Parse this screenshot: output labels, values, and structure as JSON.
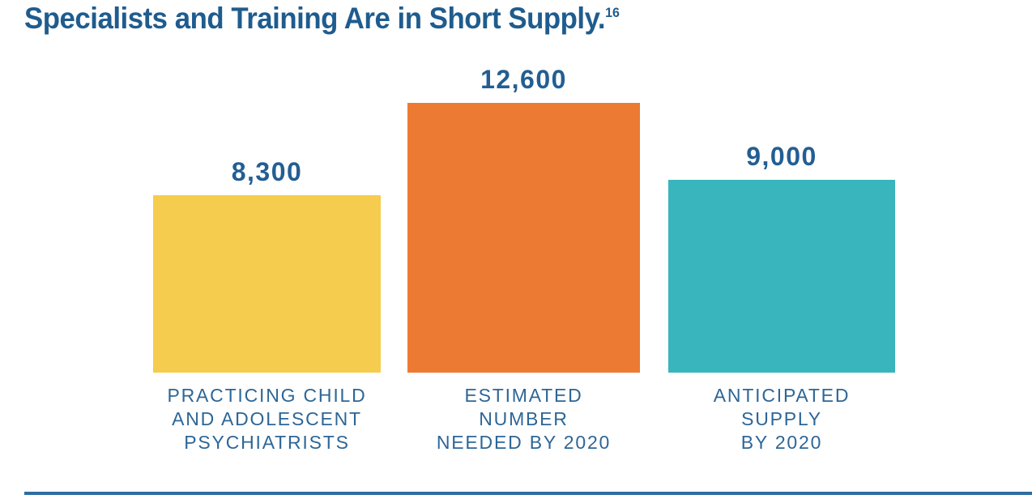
{
  "title": {
    "text": "Specialists and Training Are in Short Supply.",
    "superscript": "16"
  },
  "chart_data": {
    "type": "bar",
    "title": "Specialists and Training Are in Short Supply.",
    "title_footnote_marker": "16",
    "categories": [
      "PRACTICING CHILD AND ADOLESCENT PSYCHIATRISTS",
      "ESTIMATED NUMBER NEEDED BY 2020",
      "ANTICIPATED SUPPLY BY 2020"
    ],
    "values": [
      8300,
      12600,
      9000
    ],
    "value_labels": [
      "8,300",
      "12,600",
      "9,000"
    ],
    "bars": [
      {
        "value": 8300,
        "value_label": "8,300",
        "color": "#F5CC4D",
        "label_lines": [
          "PRACTICING CHILD",
          "AND ADOLESCENT",
          "PSYCHIATRISTS"
        ]
      },
      {
        "value": 12600,
        "value_label": "12,600",
        "color": "#ED7A33",
        "label_lines": [
          "ESTIMATED",
          "NUMBER",
          "NEEDED BY 2020"
        ]
      },
      {
        "value": 9000,
        "value_label": "9,000",
        "color": "#39B5BE",
        "label_lines": [
          "ANTICIPATED",
          "SUPPLY",
          "BY 2020"
        ]
      }
    ],
    "xlabel": "",
    "ylabel": "",
    "ylim": [
      0,
      12600
    ],
    "grid": false,
    "legend": false,
    "axes_visible": false
  },
  "colors": {
    "title_text": "#1F5C8E",
    "value_label_text": "#235E92",
    "category_label_text": "#2D6697",
    "bottom_rule": "#2E6DA3",
    "background": "#FFFFFF"
  }
}
